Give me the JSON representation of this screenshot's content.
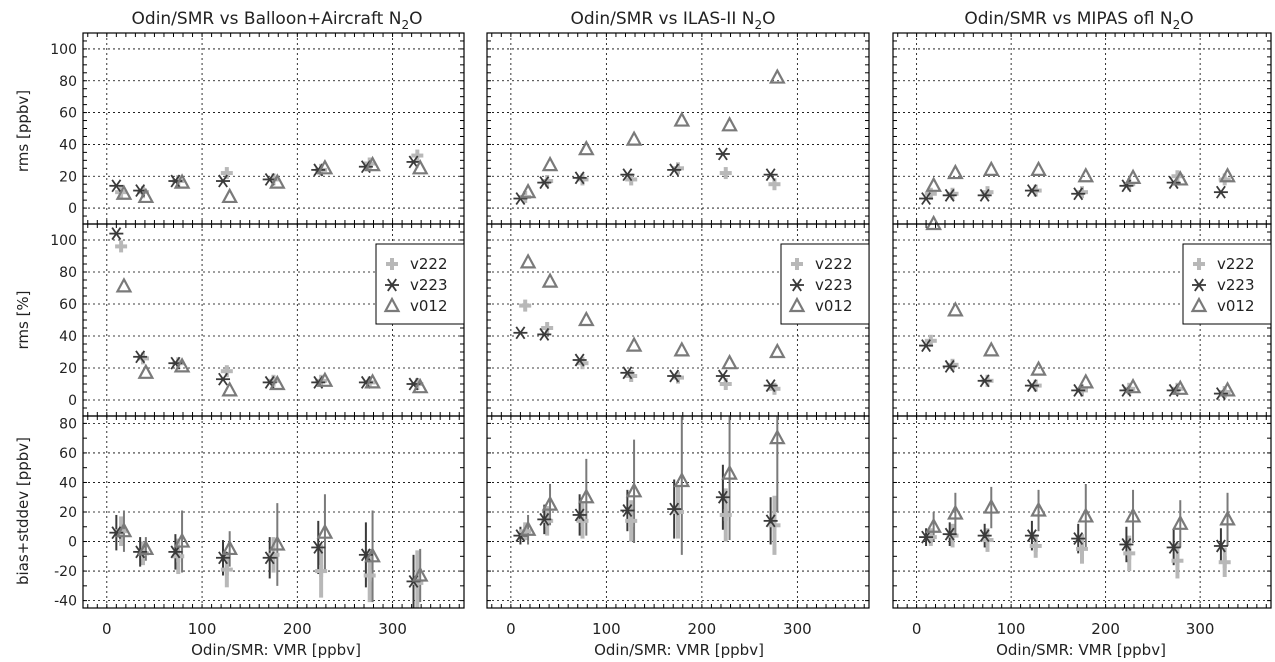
{
  "figure": {
    "ylabels": {
      "rms_abs": "rms [ppbv]",
      "rms_rel": "rms [%]",
      "bias": "bias+stddev [ppbv]"
    },
    "xlabel": "Odin/SMR: VMR [ppbv]",
    "legend": [
      "v222",
      "v223",
      "v012"
    ],
    "colors": {
      "v222": "#b8b8b8",
      "v223": "#3a3a3a",
      "v012": "#7a7a7a",
      "frame": "#000000",
      "grid": "#000000"
    }
  },
  "chart_data": [
    {
      "type": "scatter",
      "title": "Odin/SMR vs Balloon+Aircraft N2O",
      "xlim": [
        -25,
        375
      ],
      "xticks": [
        0,
        100,
        200,
        300
      ],
      "xlabel": "Odin/SMR: VMR [ppbv]",
      "legend_position": "right",
      "panels": [
        {
          "ylabel": "rms [ppbv]",
          "ylim": [
            -10,
            110
          ],
          "yticks": [
            0,
            20,
            40,
            60,
            80,
            100
          ],
          "series": [
            {
              "name": "v222",
              "x": [
                15,
                38,
                75,
                126,
                175,
                225,
                276,
                326
              ],
              "y": [
                10,
                10,
                17,
                22,
                18,
                24,
                28,
                33
              ]
            },
            {
              "name": "v223",
              "x": [
                10,
                35,
                72,
                122,
                171,
                222,
                272,
                322
              ],
              "y": [
                14,
                11,
                17,
                17,
                18,
                24,
                26,
                29
              ]
            },
            {
              "name": "v012",
              "x": [
                18,
                41,
                79,
                129,
                179,
                229,
                279,
                329
              ],
              "y": [
                9,
                7,
                16,
                7,
                16,
                25,
                27,
                25
              ]
            }
          ]
        },
        {
          "ylabel": "rms [%]",
          "ylim": [
            -10,
            110
          ],
          "yticks": [
            0,
            20,
            40,
            60,
            80,
            100
          ],
          "series": [
            {
              "name": "v222",
              "x": [
                15,
                38,
                75,
                126,
                175,
                225,
                276,
                326
              ],
              "y": [
                96,
                26,
                23,
                18,
                12,
                12,
                11,
                10
              ]
            },
            {
              "name": "v223",
              "x": [
                10,
                35,
                72,
                122,
                171,
                222,
                272,
                322
              ],
              "y": [
                104,
                27,
                23,
                13,
                11,
                11,
                11,
                10
              ]
            },
            {
              "name": "v012",
              "x": [
                18,
                41,
                79,
                129,
                179,
                229,
                279,
                329
              ],
              "y": [
                71,
                17,
                21,
                6,
                10,
                12,
                11,
                8
              ]
            }
          ]
        },
        {
          "ylabel": "bias+stddev [ppbv]",
          "ylim": [
            -45,
            85
          ],
          "yticks": [
            -40,
            -20,
            0,
            20,
            40,
            60,
            80
          ],
          "series": [
            {
              "name": "v222",
              "x": [
                15,
                38,
                75,
                126,
                175,
                225,
                276,
                326
              ],
              "y": [
                7,
                -8,
                -10,
                -19,
                -9,
                -20,
                -23,
                -28
              ],
              "err": [
                10,
                8,
                12,
                12,
                12,
                18,
                18,
                22
              ]
            },
            {
              "name": "v223",
              "x": [
                10,
                35,
                72,
                122,
                171,
                222,
                272,
                322
              ],
              "y": [
                6,
                -7,
                -7,
                -11,
                -11,
                -4,
                -9,
                -27
              ],
              "err": [
                12,
                10,
                12,
                12,
                14,
                18,
                22,
                18
              ]
            },
            {
              "name": "v012",
              "x": [
                18,
                41,
                79,
                129,
                179,
                229,
                279,
                329
              ],
              "y": [
                7,
                -5,
                0,
                -5,
                -2,
                6,
                -10,
                -23
              ],
              "err": [
                14,
                8,
                21,
                12,
                28,
                26,
                31,
                18
              ]
            }
          ]
        }
      ]
    },
    {
      "type": "scatter",
      "title": "Odin/SMR vs ILAS-II N2O",
      "xlim": [
        -25,
        375
      ],
      "xticks": [
        0,
        100,
        200,
        300
      ],
      "xlabel": "Odin/SMR: VMR [ppbv]",
      "legend_position": "right",
      "panels": [
        {
          "ylabel": "rms [ppbv]",
          "ylim": [
            -10,
            110
          ],
          "yticks": [
            0,
            20,
            40,
            60,
            80,
            100
          ],
          "series": [
            {
              "name": "v222",
              "x": [
                15,
                38,
                75,
                126,
                175,
                225,
                276
              ],
              "y": [
                7,
                17,
                18,
                18,
                25,
                22,
                15
              ]
            },
            {
              "name": "v223",
              "x": [
                10,
                35,
                72,
                122,
                171,
                222,
                272
              ],
              "y": [
                6,
                16,
                19,
                21,
                24,
                34,
                21
              ]
            },
            {
              "name": "v012",
              "x": [
                18,
                41,
                79,
                129,
                179,
                229,
                279
              ],
              "y": [
                10,
                27,
                37,
                43,
                55,
                52,
                82
              ]
            }
          ]
        },
        {
          "ylabel": "rms [%]",
          "ylim": [
            -10,
            110
          ],
          "yticks": [
            0,
            20,
            40,
            60,
            80,
            100
          ],
          "series": [
            {
              "name": "v222",
              "x": [
                15,
                38,
                75,
                126,
                175,
                225,
                276
              ],
              "y": [
                59,
                45,
                23,
                15,
                14,
                10,
                7
              ]
            },
            {
              "name": "v223",
              "x": [
                10,
                35,
                72,
                122,
                171,
                222,
                272
              ],
              "y": [
                42,
                41,
                25,
                17,
                15,
                15,
                9
              ]
            },
            {
              "name": "v012",
              "x": [
                18,
                41,
                79,
                129,
                179,
                229,
                279
              ],
              "y": [
                86,
                74,
                50,
                34,
                31,
                23,
                30
              ]
            }
          ]
        },
        {
          "ylabel": "bias+stddev [ppbv]",
          "ylim": [
            -45,
            85
          ],
          "yticks": [
            -40,
            -20,
            0,
            20,
            40,
            60,
            80
          ],
          "series": [
            {
              "name": "v222",
              "x": [
                15,
                38,
                75,
                126,
                175,
                225,
                276
              ],
              "y": [
                7,
                14,
                14,
                14,
                20,
                18,
                11
              ],
              "err": [
                6,
                10,
                12,
                14,
                18,
                18,
                20
              ]
            },
            {
              "name": "v223",
              "x": [
                10,
                35,
                72,
                122,
                171,
                222,
                272
              ],
              "y": [
                4,
                15,
                18,
                21,
                22,
                30,
                14
              ],
              "err": [
                6,
                10,
                14,
                14,
                20,
                22,
                16
              ]
            },
            {
              "name": "v012",
              "x": [
                18,
                41,
                79,
                129,
                179,
                229,
                279
              ],
              "y": [
                8,
                25,
                30,
                34,
                41,
                46,
                70
              ],
              "err": [
                10,
                14,
                26,
                35,
                50,
                45,
                50
              ]
            }
          ]
        }
      ]
    },
    {
      "type": "scatter",
      "title": "Odin/SMR vs MIPAS ofl N2O",
      "xlim": [
        -25,
        375
      ],
      "xticks": [
        0,
        100,
        200,
        300
      ],
      "xlabel": "Odin/SMR: VMR [ppbv]",
      "legend_position": "right",
      "panels": [
        {
          "ylabel": "rms [ppbv]",
          "ylim": [
            -10,
            110
          ],
          "yticks": [
            0,
            20,
            40,
            60,
            80,
            100
          ],
          "series": [
            {
              "name": "v222",
              "x": [
                15,
                38,
                75,
                126,
                175,
                225,
                276,
                326
              ],
              "y": [
                9,
                9,
                10,
                11,
                10,
                15,
                20,
                18
              ]
            },
            {
              "name": "v223",
              "x": [
                10,
                35,
                72,
                122,
                171,
                222,
                272,
                322
              ],
              "y": [
                6,
                8,
                8,
                11,
                9,
                14,
                16,
                10
              ]
            },
            {
              "name": "v012",
              "x": [
                18,
                41,
                79,
                129,
                179,
                229,
                279,
                329
              ],
              "y": [
                14,
                22,
                24,
                24,
                20,
                19,
                18,
                20
              ]
            }
          ]
        },
        {
          "ylabel": "rms [%]",
          "ylim": [
            -10,
            110
          ],
          "yticks": [
            0,
            20,
            40,
            60,
            80,
            100
          ],
          "series": [
            {
              "name": "v222",
              "x": [
                15,
                38,
                75,
                126,
                175,
                225,
                276,
                326
              ],
              "y": [
                37,
                22,
                12,
                9,
                6,
                7,
                7,
                5
              ]
            },
            {
              "name": "v223",
              "x": [
                10,
                35,
                72,
                122,
                171,
                222,
                272,
                322
              ],
              "y": [
                34,
                21,
                12,
                9,
                6,
                6,
                6,
                4
              ]
            },
            {
              "name": "v012",
              "x": [
                18,
                41,
                79,
                129,
                179,
                229,
                279,
                329
              ],
              "y": [
                110,
                56,
                31,
                19,
                11,
                8,
                7,
                6
              ]
            }
          ]
        },
        {
          "ylabel": "bias+stddev [ppbv]",
          "ylim": [
            -45,
            85
          ],
          "yticks": [
            -40,
            -20,
            0,
            20,
            40,
            60,
            80
          ],
          "series": [
            {
              "name": "v222",
              "x": [
                15,
                38,
                75,
                126,
                175,
                225,
                276,
                326
              ],
              "y": [
                3,
                4,
                1,
                -3,
                -5,
                -8,
                -13,
                -14
              ],
              "err": [
                6,
                8,
                8,
                8,
                10,
                12,
                12,
                10
              ]
            },
            {
              "name": "v223",
              "x": [
                10,
                35,
                72,
                122,
                171,
                222,
                272,
                322
              ],
              "y": [
                3,
                5,
                4,
                4,
                2,
                -2,
                -4,
                -3
              ],
              "err": [
                6,
                8,
                8,
                10,
                10,
                12,
                12,
                12
              ]
            },
            {
              "name": "v012",
              "x": [
                18,
                41,
                79,
                129,
                179,
                229,
                279,
                329
              ],
              "y": [
                10,
                19,
                23,
                21,
                17,
                17,
                12,
                15
              ],
              "err": [
                10,
                14,
                14,
                14,
                22,
                18,
                16,
                18
              ]
            }
          ]
        }
      ]
    }
  ]
}
